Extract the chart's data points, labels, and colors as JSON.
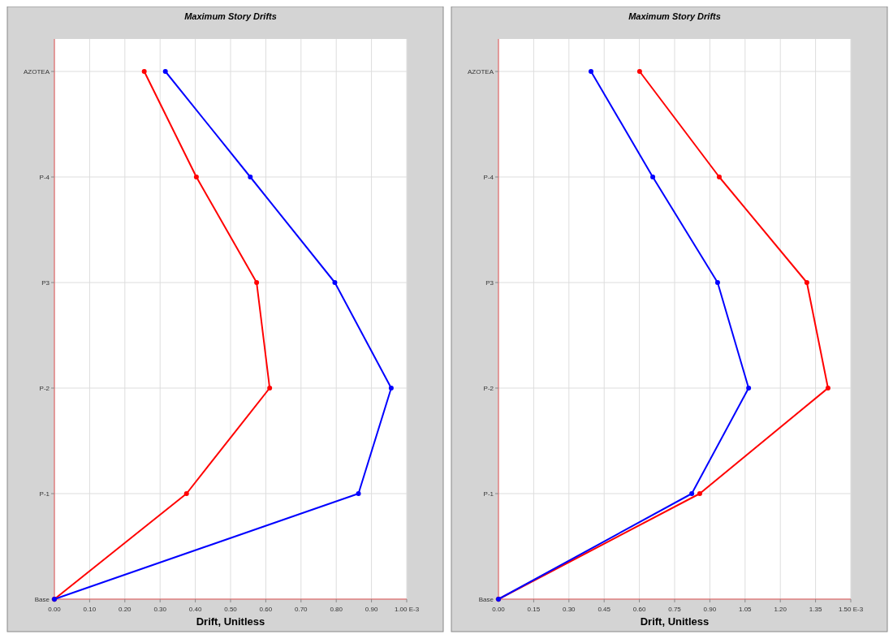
{
  "chart_data": [
    {
      "type": "line",
      "title": "Maximum Story Drifts",
      "xlabel": "Drift, Unitless",
      "orientation": "horizontal",
      "categories": [
        "AZOTEA",
        "P-4",
        "P3",
        "P-2",
        "P-1",
        "Base"
      ],
      "series": [
        {
          "color": "#ff0000",
          "values": [
            0.255,
            0.403,
            0.574,
            0.611,
            0.375,
            0
          ]
        },
        {
          "color": "#0000ff",
          "values": [
            0.315,
            0.556,
            0.796,
            0.956,
            0.863,
            0
          ]
        }
      ],
      "xlim": [
        0,
        1
      ],
      "xticks": [
        {
          "value": 0,
          "label": "0.00"
        },
        {
          "value": 0.1,
          "label": "0.10"
        },
        {
          "value": 0.2,
          "label": "0.20"
        },
        {
          "value": 0.3,
          "label": "0.30"
        },
        {
          "value": 0.4,
          "label": "0.40"
        },
        {
          "value": 0.5,
          "label": "0.50"
        },
        {
          "value": 0.6,
          "label": "0.60"
        },
        {
          "value": 0.7,
          "label": "0.70"
        },
        {
          "value": 0.8,
          "label": "0.80"
        },
        {
          "value": 0.9,
          "label": "0.90"
        },
        {
          "value": 1,
          "label": "1.00 E-3"
        }
      ],
      "grid": true,
      "marker": "circle",
      "line_style": "solid"
    },
    {
      "type": "line",
      "title": "Maximum Story Drifts",
      "xlabel": "Drift, Unitless",
      "orientation": "horizontal",
      "categories": [
        "AZOTEA",
        "P-4",
        "P3",
        "P-2",
        "P-1",
        "Base"
      ],
      "series": [
        {
          "color": "#ff0000",
          "values": [
            0.601,
            0.94,
            1.313,
            1.403,
            0.857,
            0
          ]
        },
        {
          "color": "#0000ff",
          "values": [
            0.394,
            0.657,
            0.933,
            1.065,
            0.823,
            0
          ]
        }
      ],
      "xlim": [
        0,
        1.5
      ],
      "xticks": [
        {
          "value": 0,
          "label": "0.00"
        },
        {
          "value": 0.15,
          "label": "0.15"
        },
        {
          "value": 0.3,
          "label": "0.30"
        },
        {
          "value": 0.45,
          "label": "0.45"
        },
        {
          "value": 0.6,
          "label": "0.60"
        },
        {
          "value": 0.75,
          "label": "0.75"
        },
        {
          "value": 0.9,
          "label": "0.90"
        },
        {
          "value": 1.05,
          "label": "1.05"
        },
        {
          "value": 1.2,
          "label": "1.20"
        },
        {
          "value": 1.35,
          "label": "1.35"
        },
        {
          "value": 1.5,
          "label": "1.50 E-3"
        }
      ],
      "grid": true,
      "marker": "circle",
      "line_style": "solid"
    }
  ]
}
